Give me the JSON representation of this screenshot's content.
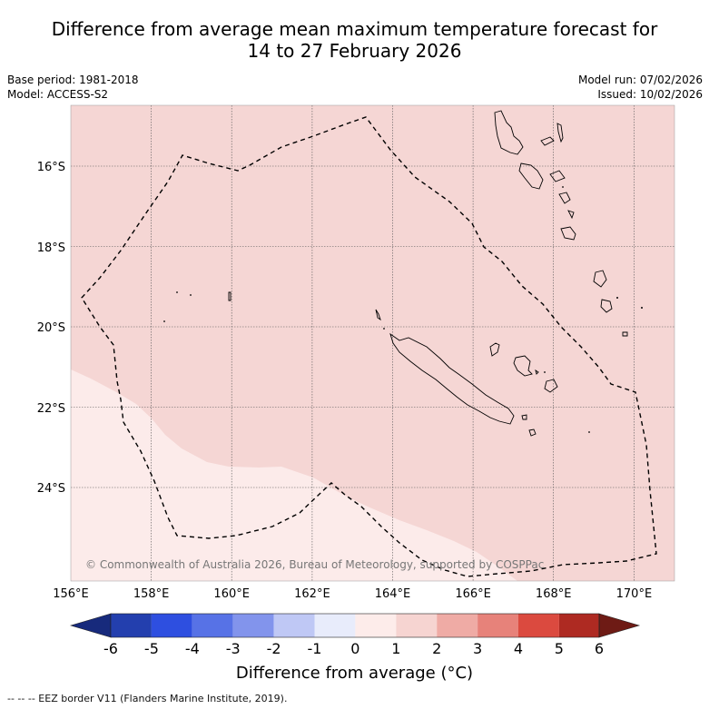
{
  "title": {
    "line1": "Difference from average mean maximum temperature forecast for",
    "line2": "14 to 27 February 2026"
  },
  "meta": {
    "base_period": "Base period: 1981-2018",
    "model": "Model: ACCESS-S2",
    "model_run": "Model run: 07/02/2026",
    "issued": "Issued: 10/02/2026"
  },
  "map": {
    "lat_labels": [
      "16°S",
      "18°S",
      "20°S",
      "22°S",
      "24°S"
    ],
    "lon_labels": [
      "156°E",
      "158°E",
      "160°E",
      "162°E",
      "164°E",
      "166°E",
      "168°E",
      "170°E"
    ],
    "copyright": "© Commonwealth of Australia 2026, Bureau of Meteorology, supported by COSPPac",
    "colors": {
      "main_anomaly": "#f5d6d4",
      "low_anomaly": "#fcebea",
      "grid": "#555555",
      "coast": "#000000",
      "eez": "#000000"
    }
  },
  "colorbar": {
    "ticks": [
      "-6",
      "-5",
      "-4",
      "-3",
      "-2",
      "-1",
      "0",
      "1",
      "2",
      "3",
      "4",
      "5",
      "6"
    ],
    "colors": [
      "#172a7c",
      "#233fae",
      "#2e4fe0",
      "#5772e6",
      "#8294ec",
      "#bfc8f5",
      "#e8ecfb",
      "#fdecea",
      "#f6d4d1",
      "#efaba5",
      "#e7827a",
      "#db4a3f",
      "#ae2a22",
      "#6e1b15"
    ],
    "title": "Difference from average (°C)"
  },
  "footer": {
    "eez_legend": "--  --  -- EEZ border V11 (Flanders Marine Institute, 2019)."
  }
}
